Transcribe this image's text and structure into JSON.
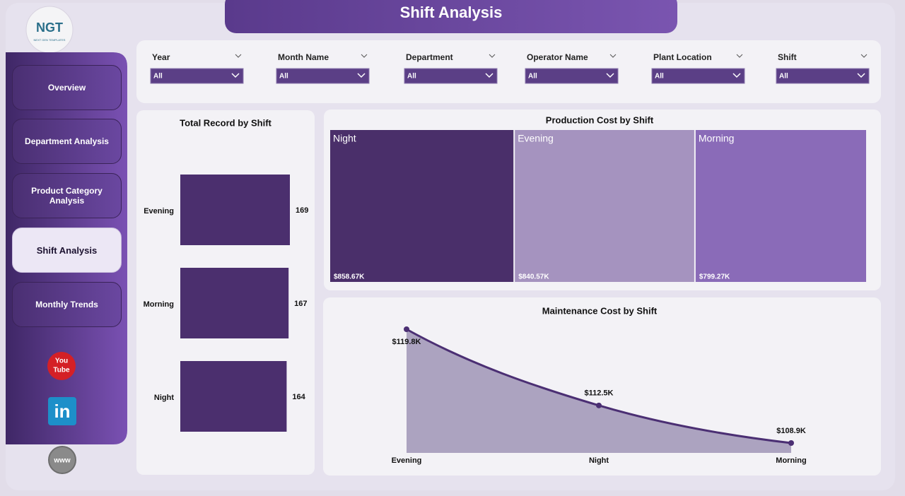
{
  "header": {
    "title": "Shift Analysis"
  },
  "logo": {
    "text": "NGT",
    "subtext": "NEXT GEN TEMPLATES"
  },
  "nav": [
    {
      "label": "Overview",
      "selected": false
    },
    {
      "label": "Department Analysis",
      "selected": false
    },
    {
      "label": "Product Category Analysis",
      "selected": false
    },
    {
      "label": "Shift Analysis",
      "selected": true
    },
    {
      "label": "Monthly Trends",
      "selected": false
    }
  ],
  "icons": {
    "youtube": [
      "You",
      "Tube"
    ],
    "linkedin": "in",
    "web": "www"
  },
  "filters": [
    {
      "label": "Year",
      "value": "All"
    },
    {
      "label": "Month Name",
      "value": "All"
    },
    {
      "label": "Department",
      "value": "All"
    },
    {
      "label": "Operator Name",
      "value": "All"
    },
    {
      "label": "Plant Location",
      "value": "All"
    },
    {
      "label": "Shift",
      "value": "All"
    }
  ],
  "chart_data": [
    {
      "type": "bar",
      "orientation": "horizontal",
      "title": "Total Record by Shift",
      "categories": [
        "Evening",
        "Morning",
        "Night"
      ],
      "values": [
        169,
        167,
        164
      ],
      "color": "#4b2f6e"
    },
    {
      "type": "treemap",
      "title": "Production Cost by Shift",
      "categories": [
        "Night",
        "Evening",
        "Morning"
      ],
      "values": [
        858.67,
        840.57,
        799.27
      ],
      "value_labels": [
        "$858.67K",
        "$840.57K",
        "$799.27K"
      ],
      "colors": [
        "#4a2f6a",
        "#a593bf",
        "#8a6bb8"
      ]
    },
    {
      "type": "area",
      "title": "Maintenance Cost by Shift",
      "categories": [
        "Evening",
        "Night",
        "Morning"
      ],
      "values": [
        119.8,
        112.5,
        108.9
      ],
      "value_labels": [
        "$119.8K",
        "$112.5K",
        "$108.9K"
      ],
      "color": "#4b2f73",
      "fill": "#aca3c0"
    }
  ]
}
